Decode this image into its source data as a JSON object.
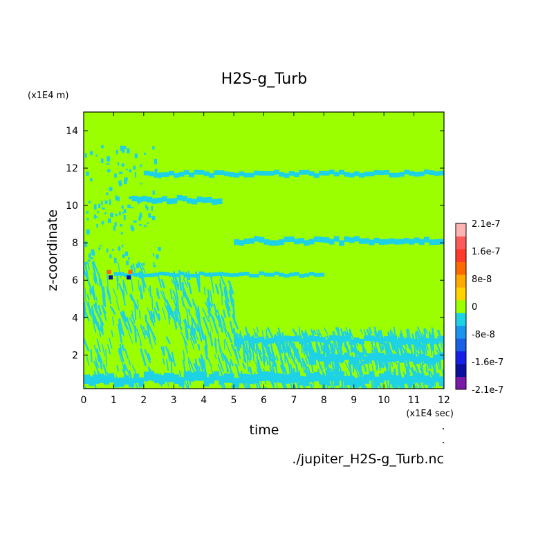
{
  "chart_data": {
    "type": "heatmap",
    "title": "H2S-g_Turb",
    "xlabel": "time",
    "ylabel": "z-coordinate",
    "x_unit": "(x1E4 sec)",
    "y_unit": "(x1E4 m)",
    "xlim": [
      0,
      12
    ],
    "ylim": [
      0.2,
      15
    ],
    "x_ticks": [
      0,
      1,
      2,
      3,
      4,
      5,
      6,
      7,
      8,
      9,
      10,
      11,
      12
    ],
    "y_ticks": [
      2,
      4,
      6,
      8,
      10,
      12,
      14
    ],
    "background_value": 0,
    "color_levels": [
      {
        "label": "-2.1e-7",
        "color": "#7a1aa8"
      },
      {
        "label": "",
        "color": "#0a0fa0"
      },
      {
        "label": "-1.6e-7",
        "color": "#1420e6"
      },
      {
        "label": "",
        "color": "#1a60e6"
      },
      {
        "label": "-8e-8",
        "color": "#1a96ef"
      },
      {
        "label": "",
        "color": "#1ed2e6"
      },
      {
        "label": "0",
        "color": "#9cff00"
      },
      {
        "label": "",
        "color": "#ffd200"
      },
      {
        "label": "8e-8",
        "color": "#ffaa00"
      },
      {
        "label": "",
        "color": "#ff6a00"
      },
      {
        "label": "1.6e-7",
        "color": "#ff3a2a"
      },
      {
        "label": "",
        "color": "#ff5a5a"
      },
      {
        "label": "2.1e-7",
        "color": "#ffb4b4"
      }
    ],
    "colorbar_labels": [
      "2.1e-7",
      "1.6e-7",
      "8e-8",
      "0",
      "-8e-8",
      "-1.6e-7",
      "-2.1e-7"
    ],
    "colorbar_label_levels": [
      12,
      10,
      8,
      6,
      4,
      2,
      0
    ],
    "bands": [
      {
        "value": -5e-08,
        "t_start": 2.0,
        "t_end": 12.0,
        "z_center": 11.7,
        "thickness": 0.25
      },
      {
        "value": -5e-08,
        "t_start": 1.6,
        "t_end": 4.6,
        "z_center": 10.3,
        "thickness": 0.3
      },
      {
        "value": -5e-08,
        "t_start": 5.0,
        "t_end": 12.0,
        "z_center": 8.1,
        "thickness": 0.3
      },
      {
        "value": -5e-08,
        "t_start": 1.0,
        "t_end": 8.0,
        "z_center": 6.3,
        "thickness": 0.2
      },
      {
        "value": -5e-08,
        "t_start": 5.0,
        "t_end": 12.0,
        "z_center": 2.8,
        "thickness": 0.3
      },
      {
        "value": -5e-08,
        "t_start": 7.5,
        "t_end": 12.0,
        "z_center": 1.8,
        "thickness": 0.4
      },
      {
        "value": -5e-08,
        "t_start": 0.0,
        "t_end": 12.0,
        "z_center": 0.7,
        "thickness": 0.5
      }
    ],
    "extrema": [
      {
        "t": 0.85,
        "z": 6.45,
        "value": 1.2e-07
      },
      {
        "t": 1.55,
        "z": 6.45,
        "value": 1.2e-07
      },
      {
        "t": 0.9,
        "z": 6.15,
        "value": -1.6e-07
      },
      {
        "t": 1.5,
        "z": 6.15,
        "value": -1.6e-07
      }
    ]
  },
  "footer": {
    "filename": "./jupiter_H2S-g_Turb.nc"
  }
}
